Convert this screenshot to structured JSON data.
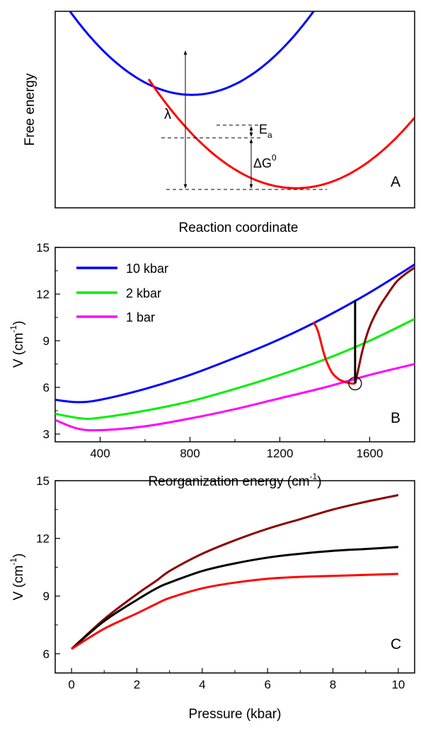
{
  "chart_data": [
    {
      "panel": "A",
      "type": "line",
      "xlabel": "Reaction coordinate",
      "ylabel": "Free energy",
      "panel_label": "A",
      "series": [
        {
          "name": "",
          "color": "#0000ff",
          "shape": "parabola",
          "vertex": [
            0.38,
            0.575
          ],
          "x_range": [
            0.0,
            0.73
          ]
        },
        {
          "name": "",
          "color": "#ff0000",
          "shape": "parabola",
          "vertex": [
            0.67,
            0.1
          ],
          "x_range": [
            0.26,
            1.0
          ]
        }
      ],
      "annotations": [
        {
          "text": "λ",
          "kind": "lambda"
        },
        {
          "text": "E",
          "subscript": "a",
          "kind": "activation-energy"
        },
        {
          "text": "ΔG",
          "superscript": "0",
          "kind": "free-energy-difference"
        }
      ]
    },
    {
      "panel": "B",
      "type": "line",
      "xlabel": "Reorganization energy (cm",
      "xlabel_sup": "-1",
      "xlabel_tail": ")",
      "ylabel": "V (cm",
      "ylabel_sup": "-1",
      "ylabel_tail": ")",
      "panel_label": "B",
      "xlim": [
        200,
        1800
      ],
      "ylim": [
        2.5,
        15
      ],
      "xticks": [
        "400",
        "800",
        "1200",
        "1600"
      ],
      "yticks": [
        "3",
        "6",
        "9",
        "12",
        "15"
      ],
      "legend": "top-left",
      "series": [
        {
          "name": "10 kbar",
          "color": "#0000ff",
          "x": [
            200,
            300,
            400,
            600,
            800,
            1000,
            1200,
            1400,
            1600,
            1800
          ],
          "y": [
            5.2,
            5.05,
            5.2,
            5.9,
            6.8,
            7.9,
            9.1,
            10.5,
            12.1,
            13.9
          ]
        },
        {
          "name": "2 kbar",
          "color": "#00ee00",
          "x": [
            200,
            320,
            400,
            600,
            800,
            1000,
            1200,
            1400,
            1600,
            1800
          ],
          "y": [
            4.3,
            4.0,
            4.05,
            4.5,
            5.1,
            5.9,
            6.8,
            7.8,
            9.0,
            10.4
          ]
        },
        {
          "name": "1 bar",
          "color": "#ff00ff",
          "x": [
            200,
            300,
            400,
            600,
            800,
            1000,
            1200,
            1400,
            1600,
            1800
          ],
          "y": [
            3.9,
            3.35,
            3.25,
            3.5,
            4.0,
            4.6,
            5.3,
            6.0,
            6.8,
            7.5
          ]
        },
        {
          "name": "",
          "color": "#ff0000",
          "x": [
            1350,
            1370,
            1400,
            1430,
            1460,
            1490,
            1520,
            1535
          ],
          "y": [
            10.2,
            9.6,
            8.0,
            7.0,
            6.55,
            6.35,
            6.25,
            6.25
          ]
        },
        {
          "name": "",
          "color": "#8b0000",
          "x": [
            1535,
            1550,
            1570,
            1600,
            1640,
            1680,
            1720,
            1760,
            1800
          ],
          "y": [
            6.25,
            7.2,
            8.5,
            9.9,
            11.1,
            12.0,
            12.8,
            13.3,
            13.7
          ]
        },
        {
          "name": "",
          "color": "#000000",
          "x": [
            1535,
            1535
          ],
          "y": [
            6.25,
            11.6
          ]
        }
      ],
      "marker": {
        "shape": "circle",
        "x": 1535,
        "y": 6.25
      }
    },
    {
      "panel": "C",
      "type": "line",
      "xlabel": "Pressure (kbar)",
      "ylabel": "V (cm",
      "ylabel_sup": "-1",
      "ylabel_tail": ")",
      "panel_label": "C",
      "xlim": [
        -0.5,
        10.5
      ],
      "ylim": [
        5,
        15
      ],
      "xticks": [
        "0",
        "2",
        "4",
        "6",
        "8",
        "10"
      ],
      "yticks": [
        "6",
        "9",
        "12",
        "15"
      ],
      "series": [
        {
          "name": "",
          "color": "#8b0000",
          "x": [
            0,
            1,
            2,
            2.6,
            3,
            4,
            5,
            6,
            7,
            8,
            9,
            10
          ],
          "y": [
            6.25,
            7.8,
            9.1,
            9.8,
            10.3,
            11.2,
            11.9,
            12.5,
            13.0,
            13.5,
            13.9,
            14.25
          ]
        },
        {
          "name": "",
          "color": "#000000",
          "x": [
            0,
            1,
            2,
            2.6,
            3,
            4,
            5,
            6,
            7,
            8,
            9,
            10
          ],
          "y": [
            6.25,
            7.7,
            8.8,
            9.4,
            9.7,
            10.3,
            10.7,
            11.0,
            11.2,
            11.35,
            11.45,
            11.55
          ]
        },
        {
          "name": "",
          "color": "#ff0000",
          "x": [
            0,
            1,
            2,
            2.6,
            3,
            4,
            5,
            6,
            7,
            8,
            9,
            10
          ],
          "y": [
            6.25,
            7.3,
            8.1,
            8.6,
            8.9,
            9.4,
            9.7,
            9.9,
            10.0,
            10.05,
            10.1,
            10.15
          ]
        }
      ]
    }
  ]
}
